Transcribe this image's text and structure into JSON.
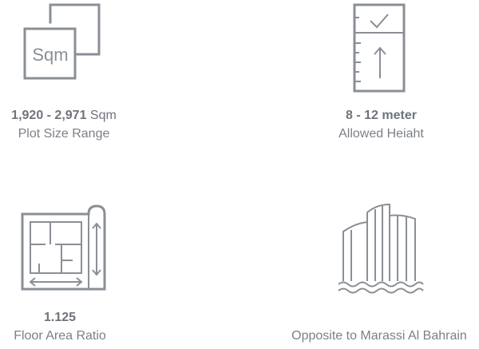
{
  "features": [
    {
      "value_bold": "1,920 - 2,971",
      "value_suffix": " Sqm",
      "label": "Plot Size Range",
      "icon": "plot-size-icon",
      "icon_text": "Sqm"
    },
    {
      "value_bold": "8 - 12 meter",
      "value_suffix": "",
      "label": "Allowed Heiaht",
      "icon": "height-ruler-icon"
    },
    {
      "value_bold": "1.125",
      "value_suffix": "",
      "label": "Floor Area Ratio",
      "icon": "floor-plan-icon"
    },
    {
      "value_bold": "",
      "value_suffix": "",
      "label": "Opposite to Marassi Al Bahrain",
      "icon": "waterfront-buildings-icon"
    }
  ],
  "colors": {
    "icon": "#8a8f96",
    "text": "#7b8087"
  }
}
